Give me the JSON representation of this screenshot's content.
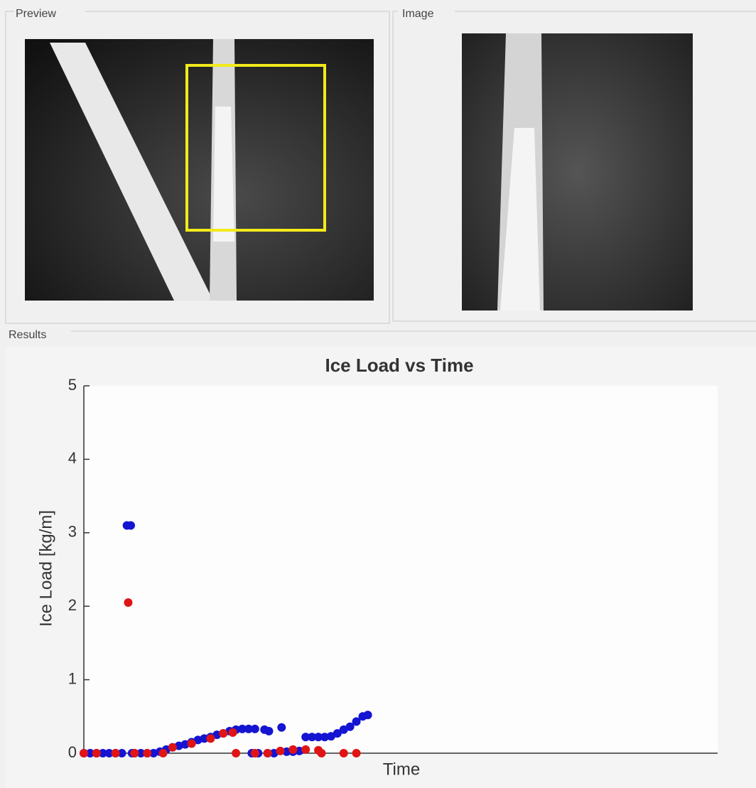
{
  "panels": {
    "preview": {
      "title": "Preview"
    },
    "image": {
      "title": "Image"
    },
    "results": {
      "title": "Results"
    }
  },
  "chart_data": {
    "type": "scatter",
    "title": "Ice Load vs Time",
    "xlabel": "Time",
    "ylabel": "Ice Load [kg/m]",
    "xlim": [
      0,
      100
    ],
    "ylim": [
      0,
      5
    ],
    "yticks": [
      0,
      1,
      2,
      3,
      4,
      5
    ],
    "series": [
      {
        "color": "#1414d2",
        "x": [
          0,
          1,
          2,
          3,
          4,
          5,
          6,
          6.8,
          7.4,
          7.6,
          8,
          9,
          10,
          11,
          12,
          13,
          14,
          15,
          16,
          17,
          18,
          19,
          20,
          21,
          22,
          23,
          24,
          25,
          26,
          27,
          26.5,
          27.5,
          28.5,
          29.2,
          29,
          30,
          31.2,
          32,
          33,
          34,
          35,
          36,
          37,
          38,
          39,
          40,
          41,
          42,
          43,
          44,
          44.8
        ],
        "values": [
          0,
          0,
          0,
          0,
          0,
          0,
          0,
          3.1,
          3.1,
          0,
          0,
          0,
          0,
          0,
          0.02,
          0.05,
          0.08,
          0.1,
          0.12,
          0.15,
          0.18,
          0.2,
          0.22,
          0.25,
          0.27,
          0.3,
          0.32,
          0.33,
          0.33,
          0.33,
          0,
          0,
          0.32,
          0.3,
          0,
          0,
          0.35,
          0.02,
          0.02,
          0.03,
          0.22,
          0.22,
          0.22,
          0.22,
          0.23,
          0.27,
          0.32,
          0.36,
          0.43,
          0.5,
          0.52
        ]
      },
      {
        "color": "#e01414",
        "x": [
          0,
          2,
          5,
          7,
          8,
          10,
          12.5,
          14,
          17,
          20,
          22,
          23.5,
          24,
          27,
          29,
          31,
          33,
          35,
          37,
          37.5,
          41,
          43
        ],
        "values": [
          0,
          0,
          0,
          2.05,
          0,
          0,
          0,
          0.08,
          0.13,
          0.2,
          0.27,
          0.28,
          0,
          0,
          0,
          0.03,
          0.05,
          0.05,
          0.04,
          0,
          0,
          0
        ]
      }
    ]
  }
}
